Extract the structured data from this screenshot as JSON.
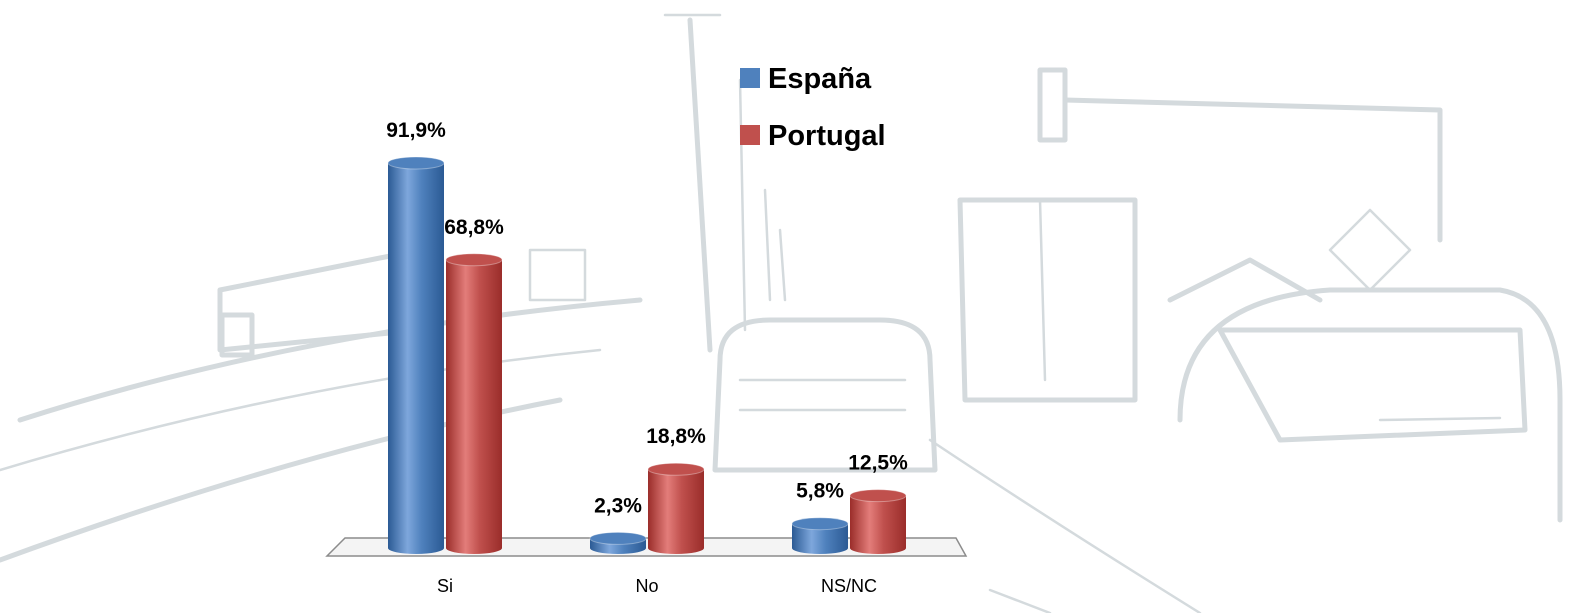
{
  "chart_data": {
    "type": "bar3d",
    "categories": [
      "Si",
      "No",
      "NS/NC"
    ],
    "series": [
      {
        "name": "España",
        "color": "#4f81bd",
        "values": [
          91.9,
          2.3,
          5.8
        ],
        "value_labels": [
          "91,9%",
          "2,3%",
          "5,8%"
        ]
      },
      {
        "name": "Portugal",
        "color": "#c0504d",
        "values": [
          68.8,
          18.8,
          12.5
        ],
        "value_labels": [
          "68,8%",
          "18,8%",
          "12,5%"
        ]
      }
    ],
    "legend": "top-center"
  }
}
